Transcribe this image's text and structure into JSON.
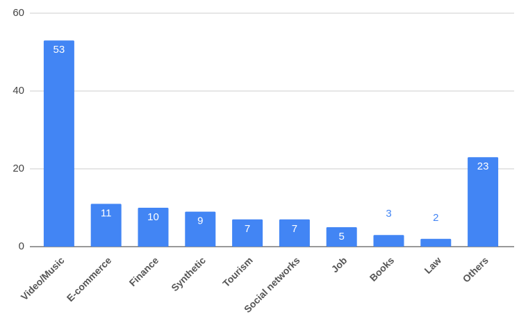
{
  "chart_data": {
    "type": "bar",
    "categories": [
      "Video/Music",
      "E-commerce",
      "Finance",
      "Synthetic",
      "Tourism",
      "Social networks",
      "Job",
      "Books",
      "Law",
      "Others"
    ],
    "values": [
      53,
      11,
      10,
      9,
      7,
      7,
      5,
      3,
      2,
      23
    ],
    "color": "#4285f4",
    "ylim": [
      0,
      60
    ],
    "yticks": [
      0,
      20,
      40,
      60
    ],
    "grid": true
  }
}
